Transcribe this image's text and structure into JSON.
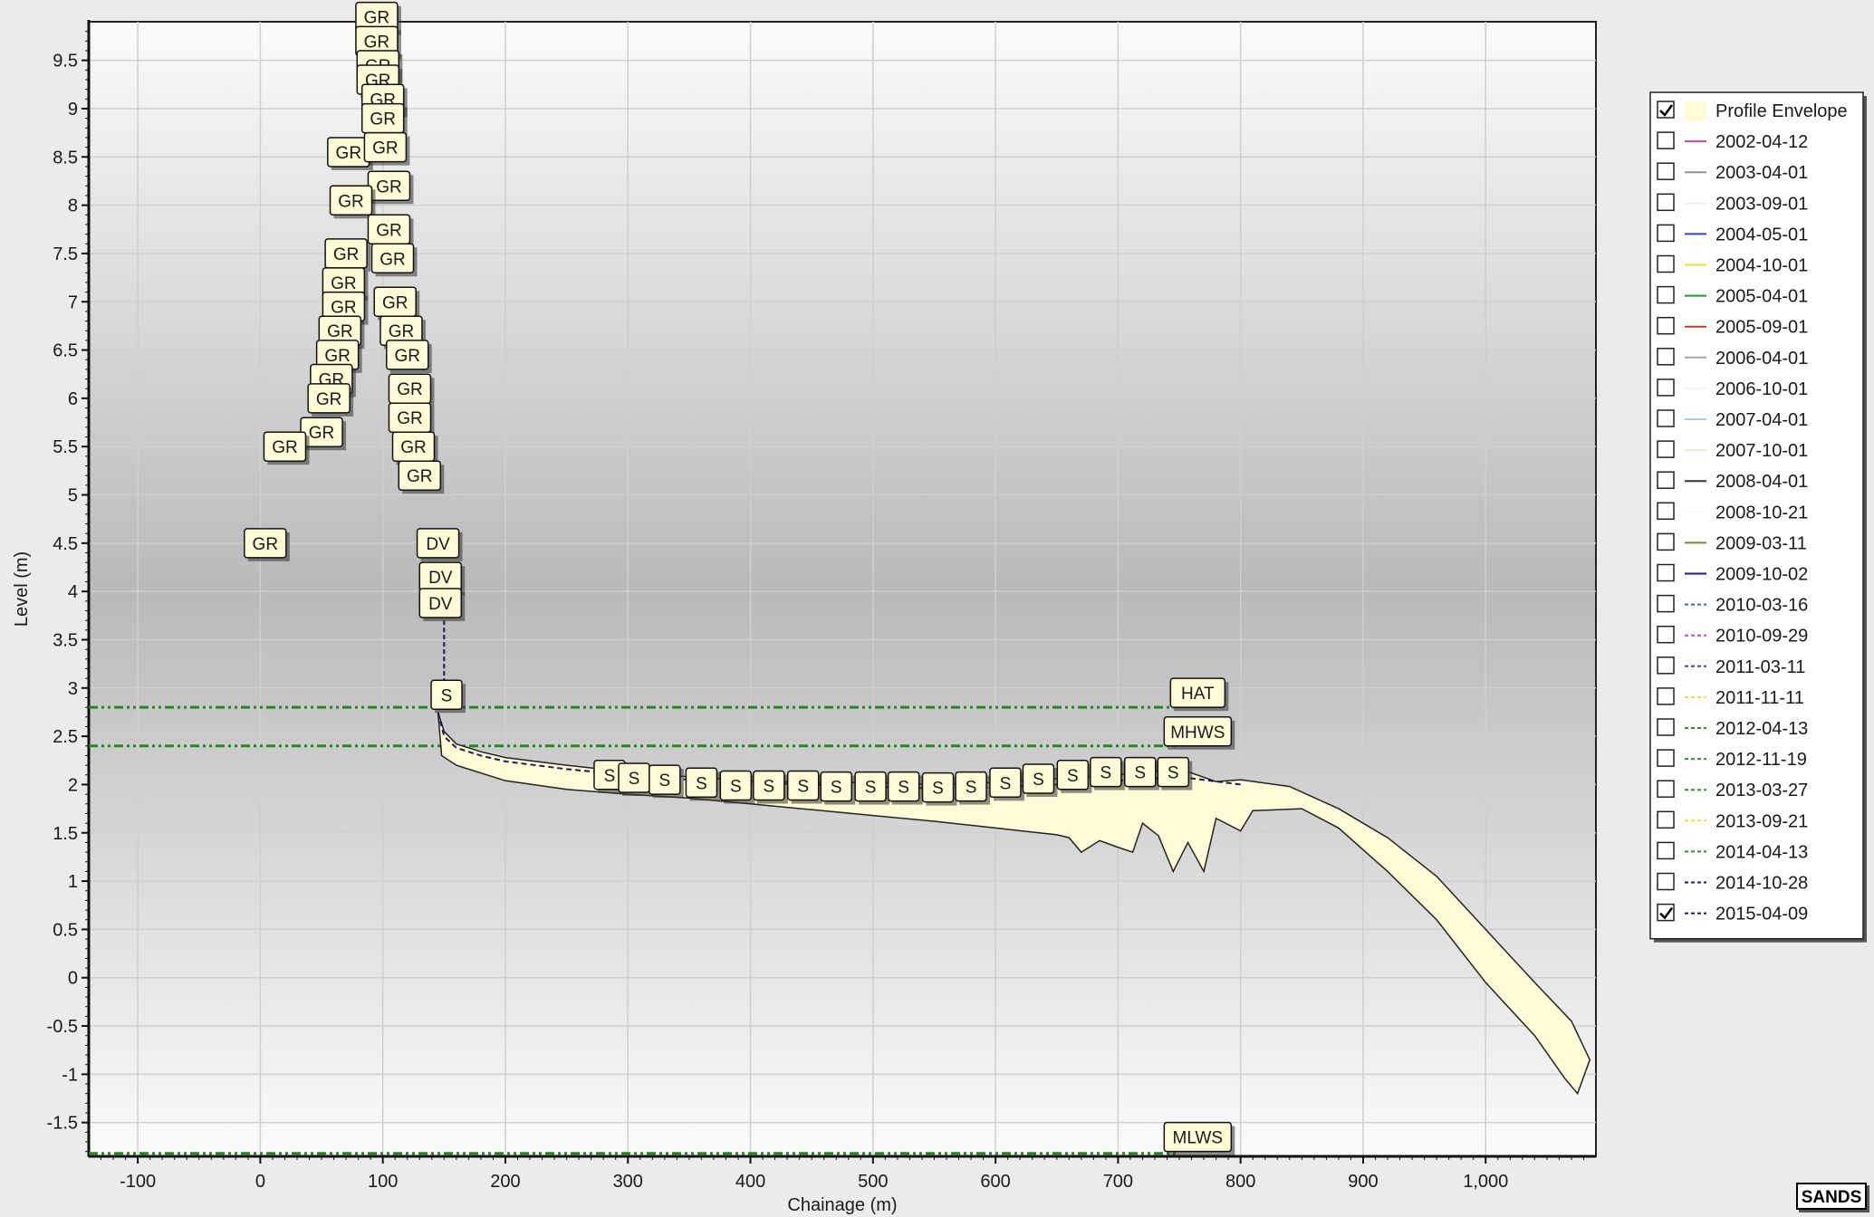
{
  "chart_data": {
    "type": "line",
    "title": "",
    "xlabel": "Chainage (m)",
    "ylabel": "Level (m)",
    "xlim": [
      -140,
      1090
    ],
    "ylim": [
      -1.85,
      9.9
    ],
    "x_ticks": [
      -100,
      0,
      100,
      200,
      300,
      400,
      500,
      600,
      700,
      800,
      900,
      1000
    ],
    "x_tick_labels": [
      "-100",
      "0",
      "100",
      "200",
      "300",
      "400",
      "500",
      "600",
      "700",
      "800",
      "900",
      "1,000"
    ],
    "y_ticks": [
      -1.5,
      -1,
      -0.5,
      0,
      0.5,
      1,
      1.5,
      2,
      2.5,
      3,
      3.5,
      4,
      4.5,
      5,
      5.5,
      6,
      6.5,
      7,
      7.5,
      8,
      8.5,
      9,
      9.5
    ],
    "y_tick_labels": [
      "-1.5",
      "-1",
      "-0.5",
      "0",
      "0.5",
      "1",
      "1.5",
      "2",
      "2.5",
      "3",
      "3.5",
      "4",
      "4.5",
      "5",
      "5.5",
      "6",
      "6.5",
      "7",
      "7.5",
      "8",
      "8.5",
      "9",
      "9.5"
    ],
    "grid": true,
    "legend_position": "right",
    "tide_levels": [
      {
        "label": "HAT",
        "level": 2.8,
        "color": "#1e8a1e"
      },
      {
        "label": "MHWS",
        "level": 2.4,
        "color": "#1e8a1e"
      },
      {
        "label": "MLWS",
        "level": -1.82,
        "color": "#1e8a1e"
      }
    ],
    "envelope": {
      "upper": [
        [
          145,
          2.75
        ],
        [
          150,
          2.55
        ],
        [
          160,
          2.42
        ],
        [
          180,
          2.34
        ],
        [
          200,
          2.28
        ],
        [
          250,
          2.2
        ],
        [
          300,
          2.13
        ],
        [
          350,
          2.08
        ],
        [
          400,
          2.04
        ],
        [
          450,
          2.02
        ],
        [
          500,
          2.02
        ],
        [
          550,
          2.0
        ],
        [
          600,
          2.02
        ],
        [
          650,
          2.06
        ],
        [
          700,
          2.1
        ],
        [
          740,
          2.15
        ],
        [
          760,
          2.12
        ],
        [
          780,
          2.03
        ],
        [
          800,
          2.05
        ],
        [
          840,
          1.98
        ],
        [
          880,
          1.75
        ],
        [
          920,
          1.45
        ],
        [
          960,
          1.05
        ],
        [
          1000,
          0.5
        ],
        [
          1040,
          -0.05
        ],
        [
          1070,
          -0.45
        ],
        [
          1085,
          -0.85
        ]
      ],
      "lower": [
        [
          1085,
          -0.85
        ],
        [
          1075,
          -1.2
        ],
        [
          1065,
          -1.05
        ],
        [
          1040,
          -0.6
        ],
        [
          1000,
          -0.05
        ],
        [
          960,
          0.6
        ],
        [
          920,
          1.1
        ],
        [
          880,
          1.55
        ],
        [
          850,
          1.75
        ],
        [
          810,
          1.73
        ],
        [
          800,
          1.52
        ],
        [
          780,
          1.65
        ],
        [
          770,
          1.1
        ],
        [
          757,
          1.4
        ],
        [
          745,
          1.1
        ],
        [
          733,
          1.47
        ],
        [
          720,
          1.6
        ],
        [
          712,
          1.3
        ],
        [
          700,
          1.35
        ],
        [
          685,
          1.42
        ],
        [
          670,
          1.3
        ],
        [
          660,
          1.45
        ],
        [
          650,
          1.48
        ],
        [
          600,
          1.55
        ],
        [
          550,
          1.62
        ],
        [
          500,
          1.68
        ],
        [
          450,
          1.74
        ],
        [
          400,
          1.8
        ],
        [
          350,
          1.86
        ],
        [
          300,
          1.9
        ],
        [
          250,
          1.95
        ],
        [
          200,
          2.04
        ],
        [
          160,
          2.2
        ],
        [
          148,
          2.3
        ]
      ]
    },
    "series": [
      {
        "name": "2015-04-09",
        "color": "#1a1a5a",
        "dash": "dashed",
        "x": [
          145,
          150,
          160,
          180,
          200,
          250,
          300,
          350,
          400,
          450,
          500,
          550,
          600,
          650,
          700,
          750,
          800
        ],
        "y": [
          2.75,
          2.5,
          2.38,
          2.3,
          2.24,
          2.16,
          2.1,
          2.05,
          2.02,
          2.0,
          1.98,
          1.96,
          1.97,
          2.0,
          2.04,
          2.08,
          2.0
        ]
      }
    ],
    "markers": [
      {
        "label": "GR",
        "x": 95,
        "y": 9.95
      },
      {
        "label": "GR",
        "x": 95,
        "y": 9.7
      },
      {
        "label": "GR",
        "x": 96,
        "y": 9.45
      },
      {
        "label": "GR",
        "x": 96,
        "y": 9.3
      },
      {
        "label": "GR",
        "x": 100,
        "y": 9.1
      },
      {
        "label": "GR",
        "x": 100,
        "y": 8.9
      },
      {
        "label": "GR",
        "x": 72,
        "y": 8.55
      },
      {
        "label": "GR",
        "x": 102,
        "y": 8.6
      },
      {
        "label": "GR",
        "x": 105,
        "y": 8.2
      },
      {
        "label": "GR",
        "x": 74,
        "y": 8.05
      },
      {
        "label": "GR",
        "x": 105,
        "y": 7.75
      },
      {
        "label": "GR",
        "x": 70,
        "y": 7.5
      },
      {
        "label": "GR",
        "x": 108,
        "y": 7.45
      },
      {
        "label": "GR",
        "x": 68,
        "y": 7.2
      },
      {
        "label": "GR",
        "x": 68,
        "y": 6.95
      },
      {
        "label": "GR",
        "x": 110,
        "y": 7.0
      },
      {
        "label": "GR",
        "x": 65,
        "y": 6.7
      },
      {
        "label": "GR",
        "x": 115,
        "y": 6.7
      },
      {
        "label": "GR",
        "x": 120,
        "y": 6.45
      },
      {
        "label": "GR",
        "x": 63,
        "y": 6.45
      },
      {
        "label": "GR",
        "x": 58,
        "y": 6.2
      },
      {
        "label": "GR",
        "x": 122,
        "y": 6.1
      },
      {
        "label": "GR",
        "x": 56,
        "y": 6.0
      },
      {
        "label": "GR",
        "x": 122,
        "y": 5.8
      },
      {
        "label": "GR",
        "x": 50,
        "y": 5.65
      },
      {
        "label": "GR",
        "x": 20,
        "y": 5.5
      },
      {
        "label": "GR",
        "x": 125,
        "y": 5.5
      },
      {
        "label": "GR",
        "x": 130,
        "y": 5.2
      },
      {
        "label": "DV",
        "x": 145,
        "y": 4.5
      },
      {
        "label": "GR",
        "x": 4,
        "y": 4.5
      },
      {
        "label": "DV",
        "x": 147,
        "y": 4.15
      },
      {
        "label": "DV",
        "x": 147,
        "y": 3.88
      },
      {
        "label": "S",
        "x": 152,
        "y": 2.93
      },
      {
        "label": "HAT",
        "x": 765,
        "y": 2.95
      },
      {
        "label": "MHWS",
        "x": 765,
        "y": 2.55
      },
      {
        "label": "S",
        "x": 285,
        "y": 2.1
      },
      {
        "label": "S",
        "x": 305,
        "y": 2.07
      },
      {
        "label": "S",
        "x": 330,
        "y": 2.05
      },
      {
        "label": "S",
        "x": 360,
        "y": 2.02
      },
      {
        "label": "S",
        "x": 388,
        "y": 1.99
      },
      {
        "label": "S",
        "x": 415,
        "y": 1.99
      },
      {
        "label": "S",
        "x": 443,
        "y": 1.99
      },
      {
        "label": "S",
        "x": 470,
        "y": 1.98
      },
      {
        "label": "S",
        "x": 498,
        "y": 1.98
      },
      {
        "label": "S",
        "x": 525,
        "y": 1.98
      },
      {
        "label": "S",
        "x": 553,
        "y": 1.97
      },
      {
        "label": "S",
        "x": 580,
        "y": 1.98
      },
      {
        "label": "S",
        "x": 608,
        "y": 2.02
      },
      {
        "label": "S",
        "x": 635,
        "y": 2.06
      },
      {
        "label": "S",
        "x": 663,
        "y": 2.1
      },
      {
        "label": "S",
        "x": 690,
        "y": 2.13
      },
      {
        "label": "S",
        "x": 718,
        "y": 2.13
      },
      {
        "label": "S",
        "x": 745,
        "y": 2.13
      },
      {
        "label": "MLWS",
        "x": 765,
        "y": -1.65
      }
    ],
    "legend": [
      {
        "label": "Profile Envelope",
        "checked": true,
        "kind": "fill",
        "color": "#fffbd6"
      },
      {
        "label": "2002-04-12",
        "checked": false,
        "kind": "solid",
        "color": "#d040c0"
      },
      {
        "label": "2003-04-01",
        "checked": false,
        "kind": "solid",
        "color": "#909090"
      },
      {
        "label": "2003-09-01",
        "checked": false,
        "kind": "solid",
        "color": "#f0f0f0"
      },
      {
        "label": "2004-05-01",
        "checked": false,
        "kind": "solid",
        "color": "#3040d0"
      },
      {
        "label": "2004-10-01",
        "checked": false,
        "kind": "solid",
        "color": "#e8e830"
      },
      {
        "label": "2005-04-01",
        "checked": false,
        "kind": "solid",
        "color": "#209a20"
      },
      {
        "label": "2005-09-01",
        "checked": false,
        "kind": "solid",
        "color": "#d03030"
      },
      {
        "label": "2006-04-01",
        "checked": false,
        "kind": "solid",
        "color": "#a8a8a8"
      },
      {
        "label": "2006-10-01",
        "checked": false,
        "kind": "solid",
        "color": "#f5f5f5"
      },
      {
        "label": "2007-04-01",
        "checked": false,
        "kind": "solid",
        "color": "#a8c8f0"
      },
      {
        "label": "2007-10-01",
        "checked": false,
        "kind": "solid",
        "color": "#d8f0d8"
      },
      {
        "label": "2008-04-01",
        "checked": false,
        "kind": "solid",
        "color": "#303030"
      },
      {
        "label": "2008-10-21",
        "checked": false,
        "kind": "solid",
        "color": "#fafafa"
      },
      {
        "label": "2009-03-11",
        "checked": false,
        "kind": "solid",
        "color": "#808020"
      },
      {
        "label": "2009-10-02",
        "checked": false,
        "kind": "solid",
        "color": "#1a1a8a"
      },
      {
        "label": "2010-03-16",
        "checked": false,
        "kind": "dashed",
        "color": "#208080"
      },
      {
        "label": "2010-09-29",
        "checked": false,
        "kind": "dashed",
        "color": "#d040d0"
      },
      {
        "label": "2011-03-11",
        "checked": false,
        "kind": "dashed",
        "color": "#3040d0"
      },
      {
        "label": "2011-11-11",
        "checked": false,
        "kind": "dashed",
        "color": "#e8e830"
      },
      {
        "label": "2012-04-13",
        "checked": false,
        "kind": "dashed",
        "color": "#209a20"
      },
      {
        "label": "2012-11-19",
        "checked": false,
        "kind": "dashed",
        "color": "#209a20"
      },
      {
        "label": "2013-03-27",
        "checked": false,
        "kind": "dashed",
        "color": "#209a20"
      },
      {
        "label": "2013-09-21",
        "checked": false,
        "kind": "dashed",
        "color": "#e8e830"
      },
      {
        "label": "2014-04-13",
        "checked": false,
        "kind": "dashed",
        "color": "#209a20"
      },
      {
        "label": "2014-10-28",
        "checked": false,
        "kind": "dashed",
        "color": "#1a1a8a"
      },
      {
        "label": "2015-04-09",
        "checked": true,
        "kind": "dashed",
        "color": "#1a1a5a"
      }
    ]
  },
  "logo": {
    "label": "SANDS"
  }
}
